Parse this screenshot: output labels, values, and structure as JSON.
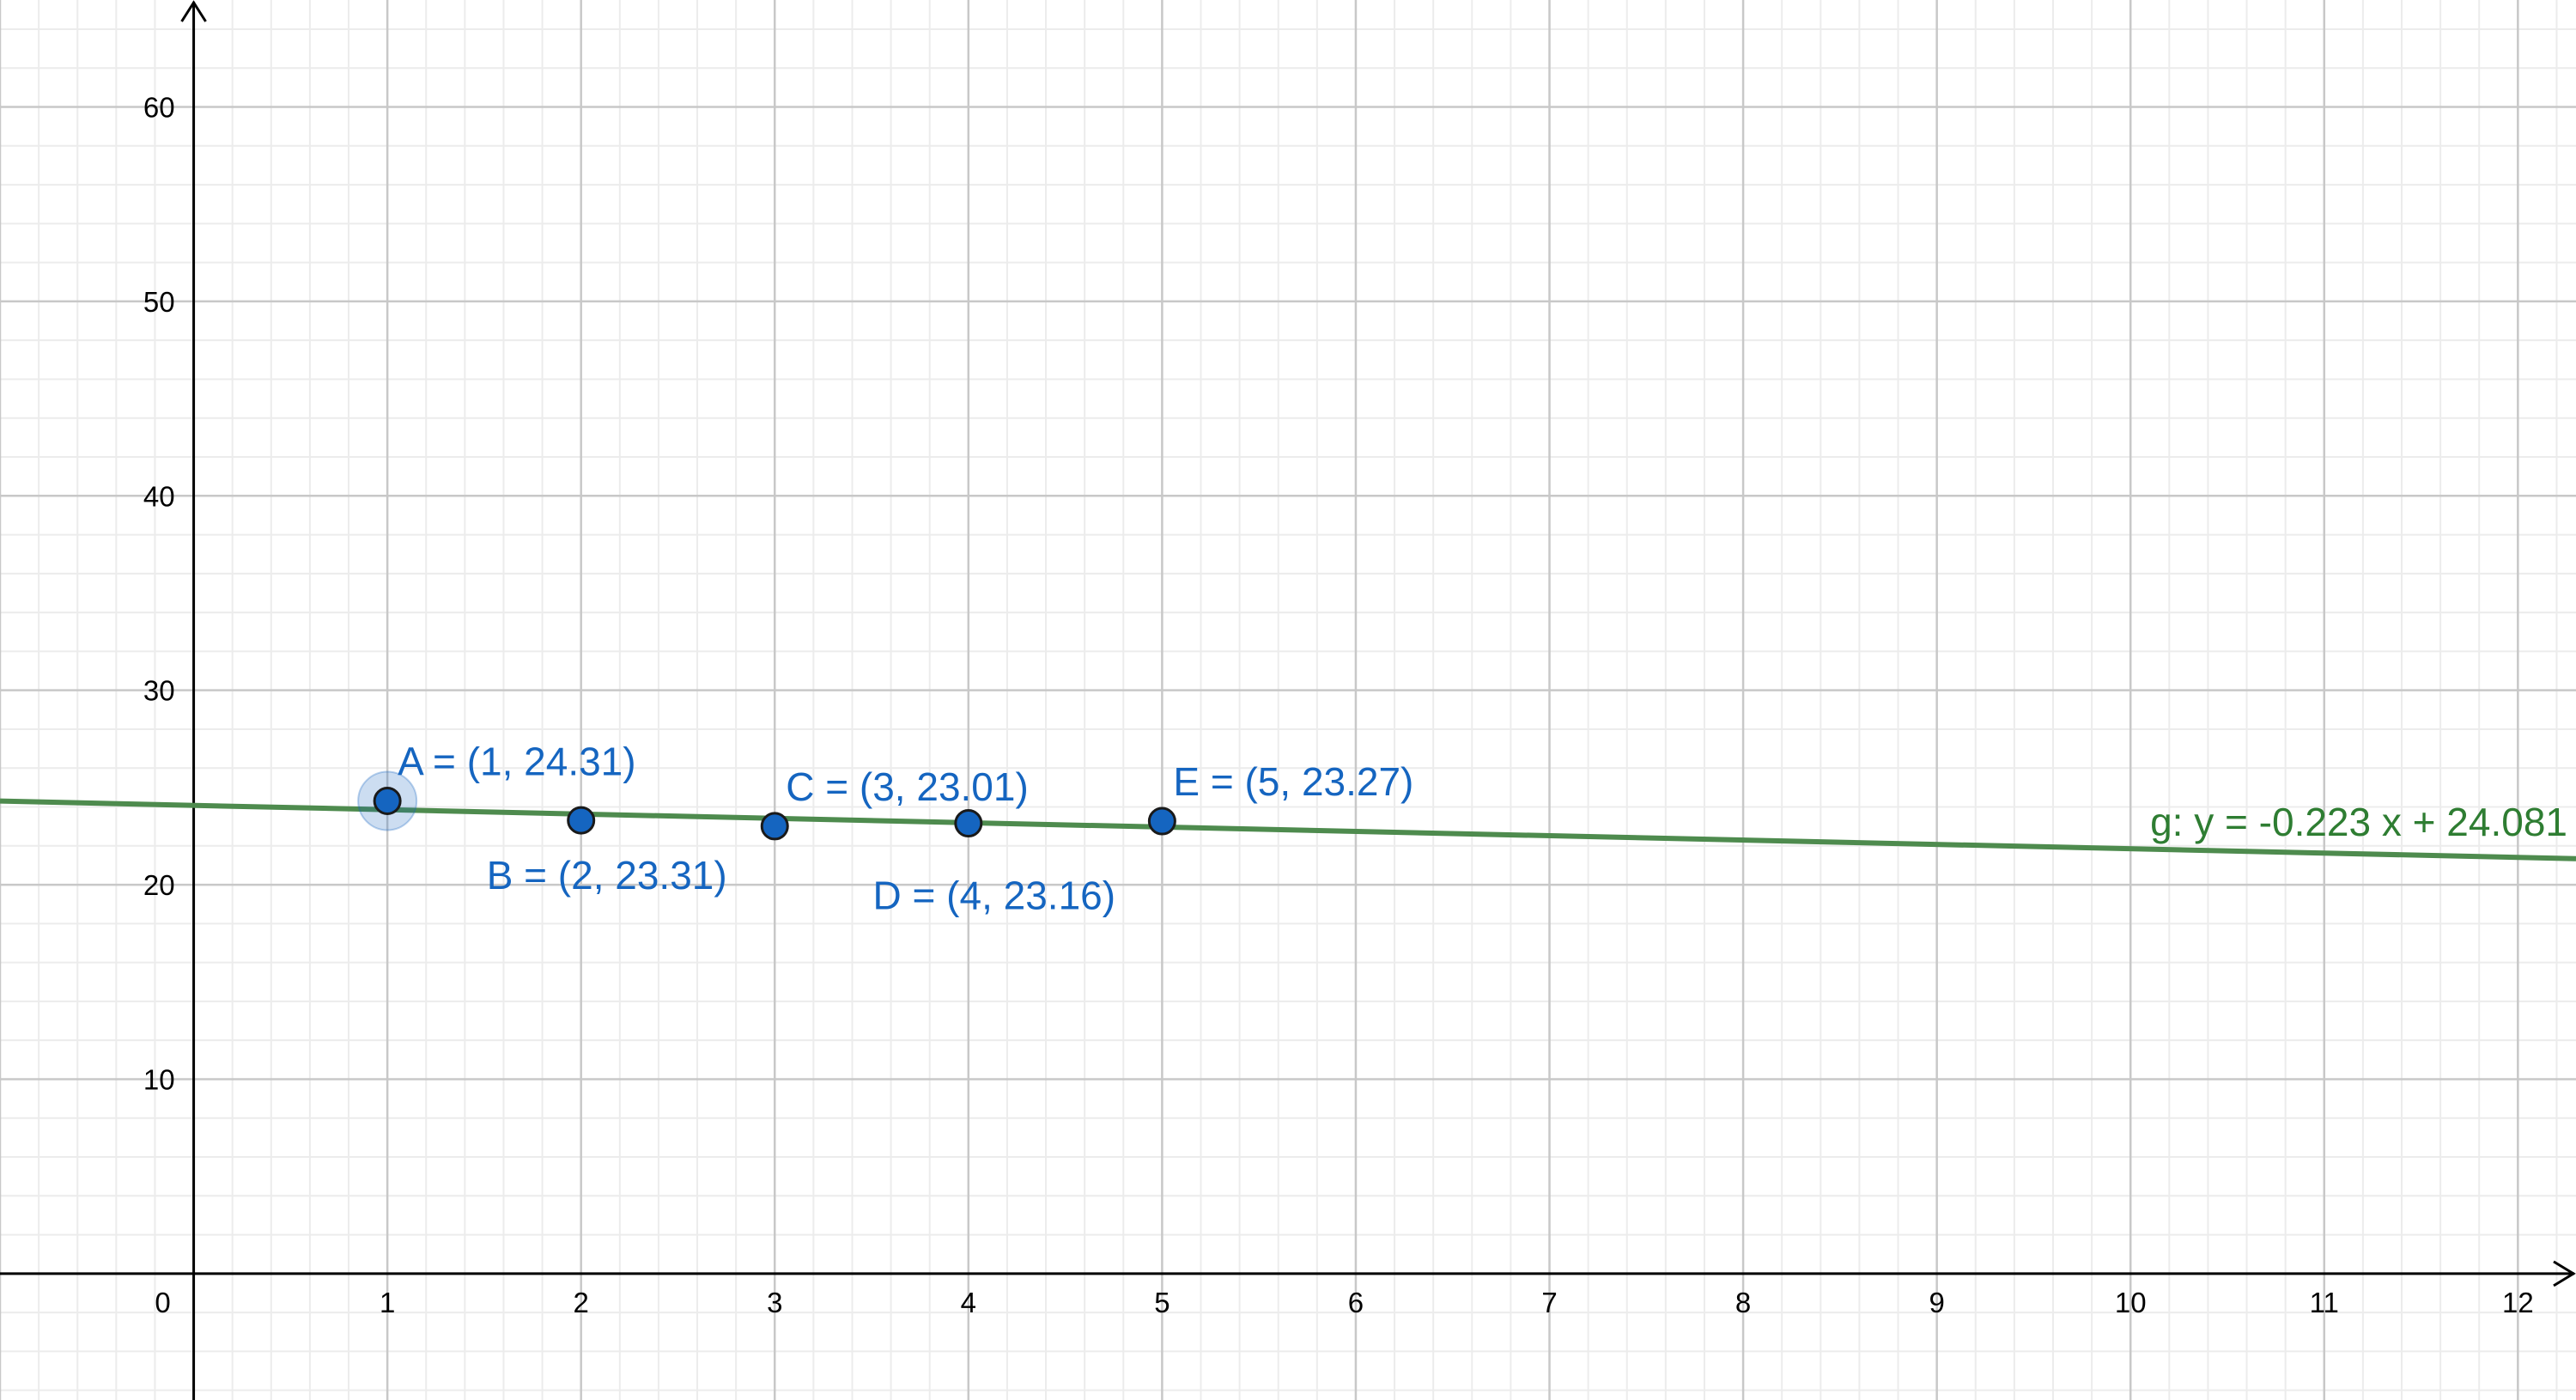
{
  "chart_data": {
    "type": "scatter",
    "xlim": [
      -1,
      12.3
    ],
    "ylim": [
      -6.5,
      65.5
    ],
    "grid": true,
    "x_ticks": [
      0,
      1,
      2,
      3,
      4,
      5,
      6,
      7,
      8,
      9,
      10,
      11,
      12
    ],
    "y_ticks": [
      10,
      20,
      30,
      40,
      50,
      60
    ],
    "points": [
      {
        "name": "A",
        "x": 1,
        "y": 24.31,
        "label": "A = (1, 24.31)",
        "selected": true
      },
      {
        "name": "B",
        "x": 2,
        "y": 23.31,
        "label": "B = (2, 23.31)"
      },
      {
        "name": "C",
        "x": 3,
        "y": 23.01,
        "label": "C = (3, 23.01)"
      },
      {
        "name": "D",
        "x": 4,
        "y": 23.16,
        "label": "D = (4, 23.16)"
      },
      {
        "name": "E",
        "x": 5,
        "y": 23.27,
        "label": "E = (5, 23.27)"
      }
    ],
    "line": {
      "name": "g",
      "slope": -0.223,
      "intercept": 24.081,
      "label": "g: y = -0.223 x + 24.081"
    },
    "colors": {
      "point_fill": "#1565c0",
      "point_label": "#1565c0",
      "line": "#4e8b4e",
      "line_label": "#2e7d32",
      "grid_major": "#c8c8c8",
      "grid_minor": "#ececec",
      "axis": "#000000"
    }
  }
}
